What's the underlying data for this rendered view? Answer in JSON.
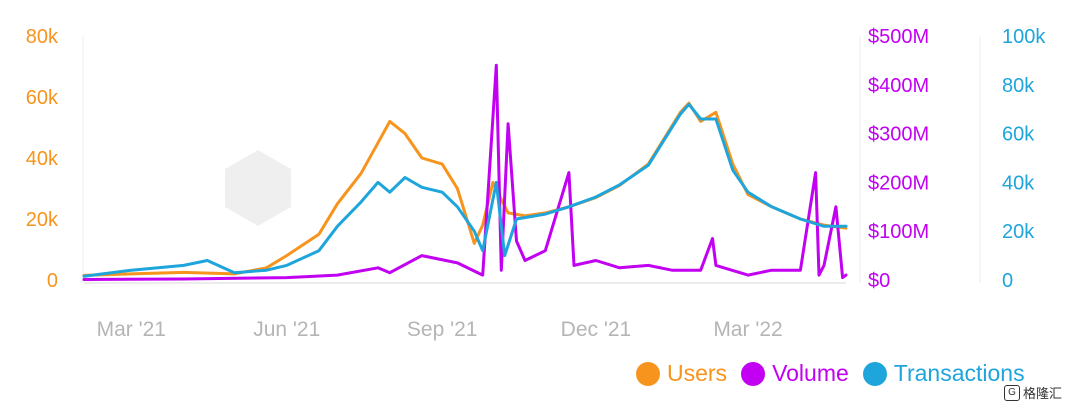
{
  "chart_data": {
    "type": "line",
    "title": "",
    "x_ticks": [
      "Mar '21",
      "Jun '21",
      "Sep '21",
      "Dec '21",
      "Mar '22"
    ],
    "x_range": [
      "2021-02-01",
      "2022-04-28"
    ],
    "axes": {
      "left": {
        "series": "Users",
        "ticks": [
          "0",
          "20k",
          "40k",
          "60k",
          "80k"
        ],
        "tick_values": [
          0,
          20000,
          40000,
          60000,
          80000
        ],
        "range": [
          0,
          80000
        ],
        "color": "#f7941d"
      },
      "mid": {
        "series": "Volume",
        "ticks": [
          "$0",
          "$100M",
          "$200M",
          "$300M",
          "$400M",
          "$500M"
        ],
        "tick_values": [
          0,
          100000000,
          200000000,
          300000000,
          400000000,
          500000000
        ],
        "range": [
          0,
          500000000
        ],
        "color": "#c200f2"
      },
      "right": {
        "series": "Transactions",
        "ticks": [
          "0",
          "20k",
          "40k",
          "60k",
          "80k",
          "100k"
        ],
        "tick_values": [
          0,
          20000,
          40000,
          60000,
          80000,
          100000
        ],
        "range": [
          0,
          100000
        ],
        "color": "#1ea5dc"
      }
    },
    "grid": false,
    "legend_position": "bottom-right",
    "series": [
      {
        "name": "Users",
        "axis": "left",
        "color": "#f7941d",
        "x": [
          "2021-02-01",
          "2021-03-01",
          "2021-04-01",
          "2021-05-01",
          "2021-05-20",
          "2021-06-01",
          "2021-06-20",
          "2021-07-01",
          "2021-07-15",
          "2021-07-25",
          "2021-08-01",
          "2021-08-10",
          "2021-08-20",
          "2021-09-01",
          "2021-09-10",
          "2021-09-20",
          "2021-09-25",
          "2021-10-01",
          "2021-10-10",
          "2021-10-20",
          "2021-11-01",
          "2021-11-15",
          "2021-12-01",
          "2021-12-15",
          "2022-01-01",
          "2022-01-10",
          "2022-01-20",
          "2022-01-25",
          "2022-02-01",
          "2022-02-10",
          "2022-02-20",
          "2022-03-01",
          "2022-03-15",
          "2022-04-01",
          "2022-04-15",
          "2022-04-28"
        ],
        "y": [
          1500,
          2000,
          2500,
          2000,
          4000,
          8000,
          15000,
          25000,
          35000,
          45000,
          52000,
          48000,
          40000,
          38000,
          30000,
          12000,
          18000,
          32000,
          22000,
          21000,
          22000,
          24000,
          27000,
          31000,
          38000,
          46000,
          55000,
          58000,
          52000,
          55000,
          38000,
          28000,
          24000,
          20000,
          18000,
          17000
        ]
      },
      {
        "name": "Volume",
        "axis": "mid",
        "color": "#c200f2",
        "x": [
          "2021-02-01",
          "2021-04-01",
          "2021-06-01",
          "2021-07-01",
          "2021-07-25",
          "2021-08-01",
          "2021-08-20",
          "2021-09-10",
          "2021-09-25",
          "2021-10-03",
          "2021-10-06",
          "2021-10-10",
          "2021-10-15",
          "2021-10-20",
          "2021-11-01",
          "2021-11-15",
          "2021-11-18",
          "2021-12-01",
          "2021-12-15",
          "2022-01-01",
          "2022-01-15",
          "2022-02-01",
          "2022-02-08",
          "2022-02-10",
          "2022-03-01",
          "2022-03-15",
          "2022-04-01",
          "2022-04-10",
          "2022-04-12",
          "2022-04-15",
          "2022-04-22",
          "2022-04-26",
          "2022-04-28"
        ],
        "y": [
          1000000,
          2000000,
          5000000,
          10000000,
          25000000,
          15000000,
          50000000,
          35000000,
          10000000,
          440000000,
          20000000,
          320000000,
          80000000,
          40000000,
          60000000,
          220000000,
          30000000,
          40000000,
          25000000,
          30000000,
          20000000,
          20000000,
          85000000,
          30000000,
          10000000,
          20000000,
          20000000,
          220000000,
          10000000,
          30000000,
          150000000,
          5000000,
          10000000
        ]
      },
      {
        "name": "Transactions",
        "axis": "right",
        "color": "#1ea5dc",
        "x": [
          "2021-02-01",
          "2021-03-01",
          "2021-04-01",
          "2021-04-15",
          "2021-05-01",
          "2021-05-20",
          "2021-06-01",
          "2021-06-20",
          "2021-07-01",
          "2021-07-15",
          "2021-07-25",
          "2021-08-01",
          "2021-08-10",
          "2021-08-20",
          "2021-09-01",
          "2021-09-10",
          "2021-09-20",
          "2021-09-25",
          "2021-10-03",
          "2021-10-08",
          "2021-10-15",
          "2021-11-01",
          "2021-11-15",
          "2021-12-01",
          "2021-12-15",
          "2022-01-01",
          "2022-01-10",
          "2022-01-20",
          "2022-01-25",
          "2022-02-01",
          "2022-02-10",
          "2022-02-20",
          "2022-03-01",
          "2022-03-15",
          "2022-04-01",
          "2022-04-15",
          "2022-04-28"
        ],
        "y": [
          1500,
          4000,
          6000,
          8000,
          3000,
          4000,
          6000,
          12000,
          22000,
          32000,
          40000,
          36000,
          42000,
          38000,
          36000,
          30000,
          20000,
          12000,
          40000,
          10000,
          25000,
          27000,
          30000,
          34000,
          39000,
          47000,
          57000,
          68000,
          72000,
          66000,
          66000,
          45000,
          36000,
          30000,
          25000,
          22000,
          22000
        ]
      }
    ]
  },
  "legend": [
    {
      "label": "Users",
      "color": "#f7941d"
    },
    {
      "label": "Volume",
      "color": "#c200f2"
    },
    {
      "label": "Transactions",
      "color": "#1ea5dc"
    }
  ],
  "watermark": "DappRadar",
  "corner_badge": "格隆汇"
}
